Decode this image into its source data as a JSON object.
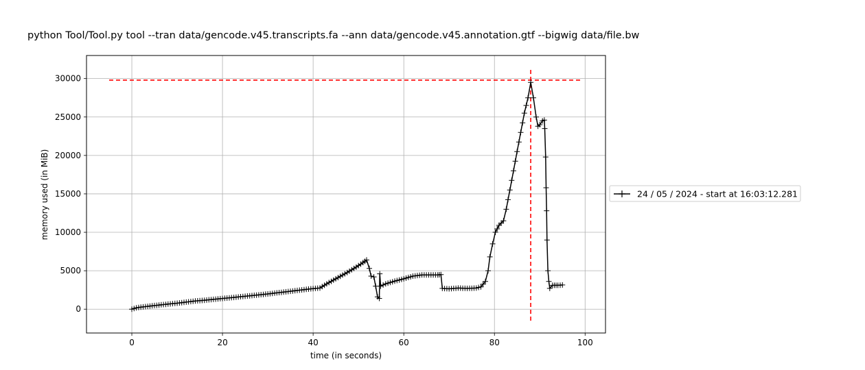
{
  "chart_data": {
    "type": "line",
    "title": "python Tool/Tool.py tool --tran data/gencode.v45.transcripts.fa --ann data/gencode.v45.annotation.gtf --bigwig data/file.bw",
    "xlabel": "time (in seconds)",
    "ylabel": "memory used (in MiB)",
    "xlim": [
      -10,
      104.5
    ],
    "ylim": [
      -3100,
      33000
    ],
    "xticks": [
      0,
      20,
      40,
      60,
      80,
      100
    ],
    "yticks": [
      0,
      5000,
      10000,
      15000,
      20000,
      25000,
      30000
    ],
    "grid": true,
    "legend_position": "outside-right",
    "series": [
      {
        "name": "24 / 05 / 2024 - start at 16:03:12.281",
        "color": "#000000",
        "marker": "plus",
        "points": [
          [
            0.0,
            0
          ],
          [
            1.0,
            180
          ],
          [
            2.0,
            260
          ],
          [
            4.0,
            400
          ],
          [
            6.0,
            540
          ],
          [
            8.0,
            660
          ],
          [
            10.0,
            780
          ],
          [
            12.0,
            920
          ],
          [
            14.0,
            1060
          ],
          [
            16.0,
            1160
          ],
          [
            18.0,
            1280
          ],
          [
            20.0,
            1390
          ],
          [
            22.0,
            1500
          ],
          [
            24.0,
            1620
          ],
          [
            26.0,
            1740
          ],
          [
            28.0,
            1860
          ],
          [
            30.0,
            1980
          ],
          [
            32.0,
            2120
          ],
          [
            34.0,
            2260
          ],
          [
            36.0,
            2400
          ],
          [
            38.0,
            2540
          ],
          [
            40.0,
            2680
          ],
          [
            41.5,
            2750
          ],
          [
            43.0,
            3300
          ],
          [
            45.0,
            3950
          ],
          [
            47.0,
            4600
          ],
          [
            49.0,
            5300
          ],
          [
            51.0,
            6050
          ],
          [
            51.8,
            6400
          ],
          [
            52.4,
            5300
          ],
          [
            52.8,
            4300
          ],
          [
            53.4,
            4200
          ],
          [
            53.8,
            3000
          ],
          [
            54.2,
            1600
          ],
          [
            54.6,
            1400
          ],
          [
            54.7,
            4600
          ],
          [
            54.9,
            3000
          ],
          [
            56.0,
            3300
          ],
          [
            58.0,
            3650
          ],
          [
            60.0,
            3950
          ],
          [
            62.0,
            4300
          ],
          [
            64.0,
            4450
          ],
          [
            66.0,
            4450
          ],
          [
            67.5,
            4450
          ],
          [
            68.2,
            4500
          ],
          [
            68.5,
            2700
          ],
          [
            70.0,
            2650
          ],
          [
            72.0,
            2750
          ],
          [
            74.0,
            2700
          ],
          [
            76.0,
            2750
          ],
          [
            77.0,
            2900
          ],
          [
            78.0,
            3600
          ],
          [
            78.6,
            5000
          ],
          [
            79.0,
            6800
          ],
          [
            79.6,
            8500
          ],
          [
            80.2,
            10000
          ],
          [
            81.0,
            10900
          ],
          [
            82.0,
            11500
          ],
          [
            82.6,
            13000
          ],
          [
            83.4,
            15500
          ],
          [
            84.2,
            18000
          ],
          [
            85.0,
            20500
          ],
          [
            85.8,
            23000
          ],
          [
            86.6,
            25500
          ],
          [
            87.4,
            27500
          ],
          [
            88.0,
            29500
          ],
          [
            88.6,
            27500
          ],
          [
            89.2,
            25000
          ],
          [
            89.6,
            23800
          ],
          [
            90.0,
            24000
          ],
          [
            90.6,
            24500
          ],
          [
            91.0,
            24600
          ],
          [
            91.1,
            23500
          ],
          [
            91.3,
            19800
          ],
          [
            91.4,
            15800
          ],
          [
            91.5,
            12800
          ],
          [
            91.6,
            9000
          ],
          [
            91.8,
            5000
          ],
          [
            92.0,
            3600
          ],
          [
            92.2,
            2700
          ],
          [
            92.8,
            3100
          ],
          [
            94.0,
            3100
          ],
          [
            95.0,
            3150
          ]
        ]
      }
    ],
    "reference_lines": [
      {
        "orientation": "horizontal",
        "y": 29800,
        "x_range": [
          -5,
          99
        ],
        "color": "#ff0000",
        "style": "dashed"
      },
      {
        "orientation": "vertical",
        "x": 88.0,
        "y_range": [
          -1500,
          31300
        ],
        "color": "#ff0000",
        "style": "dashed"
      }
    ]
  }
}
